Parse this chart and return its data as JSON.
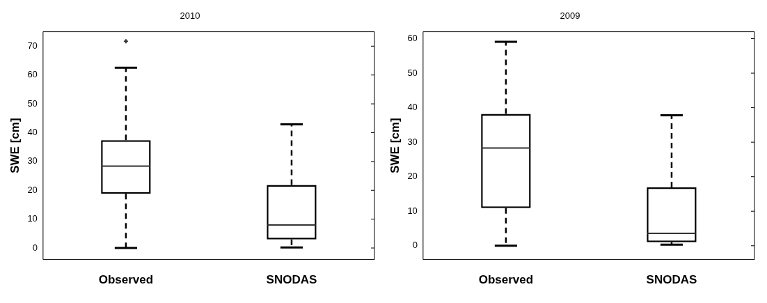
{
  "chart_data": [
    {
      "type": "box",
      "title": "2010",
      "ylabel": "SWE [cm]",
      "categories": [
        "Observed",
        "SNODAS"
      ],
      "boxes": [
        {
          "low": 0,
          "q1": 18.8,
          "median": 28.4,
          "q3": 37.4,
          "high": 62.5,
          "outliers": [
            71.7
          ]
        },
        {
          "low": 0.2,
          "q1": 3,
          "median": 8,
          "q3": 21.9,
          "high": 42.9
        }
      ],
      "ylim": [
        -4,
        75
      ],
      "yticks": [
        0,
        10,
        20,
        30,
        40,
        50,
        60,
        70
      ],
      "grid": false,
      "legend": false
    },
    {
      "type": "box",
      "title": "2009",
      "ylabel": "SWE [cm]",
      "categories": [
        "Observed",
        "SNODAS"
      ],
      "boxes": [
        {
          "low": 0,
          "q1": 10.9,
          "median": 28.3,
          "q3": 38.2,
          "high": 59.1
        },
        {
          "low": 0.3,
          "q1": 1,
          "median": 3.6,
          "q3": 16.9,
          "high": 37.8
        }
      ],
      "ylim": [
        -4,
        62
      ],
      "yticks": [
        0,
        10,
        20,
        30,
        40,
        50,
        60
      ],
      "grid": false,
      "legend": false
    }
  ]
}
